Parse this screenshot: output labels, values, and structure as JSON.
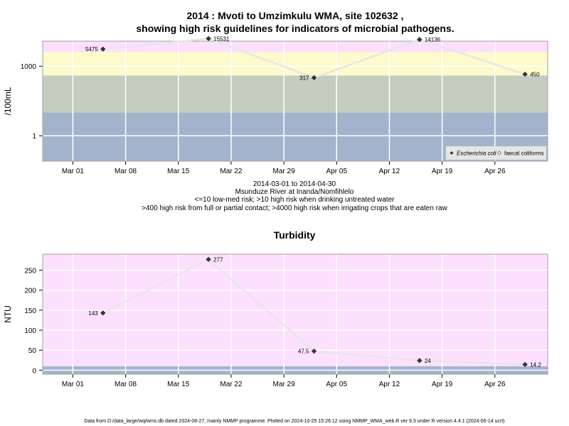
{
  "title_line1": "2014 : Mvoti to Umzimkulu WMA, site 102632 ,",
  "title_line2": "showing high risk guidelines for indicators of microbial pathogens.",
  "subtitle_lines": [
    "2014-03-01 to 2014-04-30",
    "Msunduze River at Inanda/Nomfihlelo",
    "<=10 low-med risk; >10 high risk when drinking untreated water",
    ">400 high risk from full or partial contact; >4000 high risk when irrigating crops that are eaten raw"
  ],
  "footer": "Data from D:/data_large/wq/wms.db dated 2024-08-27, mainly NMMP programme. Plotted on 2024-10-25 15:26:12 using NMMP_WMA_web.R ver 9.3 under R version 4.4.1 (2024-06-14 ucrt)",
  "x_tick_labels": [
    "Mar 01",
    "Mar 08",
    "Mar 15",
    "Mar 22",
    "Mar 29",
    "Apr 05",
    "Apr 12",
    "Apr 19",
    "Apr 26"
  ],
  "x_tick_dates": [
    "2014-03-01",
    "2014-03-08",
    "2014-03-15",
    "2014-03-22",
    "2014-03-29",
    "2014-04-05",
    "2014-04-12",
    "2014-04-19",
    "2014-04-26"
  ],
  "colors": {
    "blue_band": "#a3b3cc",
    "gray_band": "#c5cdbf",
    "yellow_band": "#fdfbcc",
    "pink_band": "#fde0fd",
    "grid": "#ffffff",
    "line": "#e6e6e6",
    "marker": "#333333"
  },
  "chart_data": [
    {
      "type": "scatter",
      "title": "",
      "xlabel": "",
      "ylabel": "/100mL",
      "y_scale": "log",
      "y_ticks": [
        1,
        1000
      ],
      "xlim": [
        "2014-02-25",
        "2014-05-03"
      ],
      "ylim": [
        0.08,
        12000
      ],
      "bands": [
        {
          "from": 0.08,
          "to": 10
        },
        {
          "from": 10,
          "to": 400
        },
        {
          "from": 400,
          "to": 4000
        },
        {
          "from": 4000,
          "to": 12000
        }
      ],
      "legend": {
        "position": "bottom-right",
        "entries": [
          "Escherichia coli",
          "faecal coliforms"
        ]
      },
      "series": [
        {
          "name": "Escherichia coli",
          "points": [
            {
              "x": "2014-03-05",
              "y": 5475,
              "label": "5475"
            },
            {
              "x": "2014-03-19",
              "y": 15531,
              "label": "15531"
            },
            {
              "x": "2014-04-02",
              "y": 317,
              "label": "317"
            },
            {
              "x": "2014-04-16",
              "y": 14136,
              "label": "14136"
            },
            {
              "x": "2014-04-30",
              "y": 450,
              "label": "450"
            }
          ]
        }
      ]
    },
    {
      "type": "scatter",
      "title": "Turbidity",
      "xlabel": "",
      "ylabel": "NTU",
      "y_scale": "linear",
      "y_ticks": [
        0,
        50,
        100,
        150,
        200,
        250
      ],
      "xlim": [
        "2014-02-25",
        "2014-05-03"
      ],
      "ylim": [
        -10,
        290
      ],
      "bands": [
        {
          "from": -10,
          "to": 10
        },
        {
          "from": 10,
          "to": 290
        }
      ],
      "series": [
        {
          "name": "Turbidity",
          "points": [
            {
              "x": "2014-03-05",
              "y": 143,
              "label": "143"
            },
            {
              "x": "2014-03-19",
              "y": 277,
              "label": "277"
            },
            {
              "x": "2014-04-02",
              "y": 47.5,
              "label": "47.5"
            },
            {
              "x": "2014-04-16",
              "y": 24,
              "label": "24"
            },
            {
              "x": "2014-04-30",
              "y": 14.2,
              "label": "14.2"
            }
          ]
        }
      ]
    }
  ]
}
